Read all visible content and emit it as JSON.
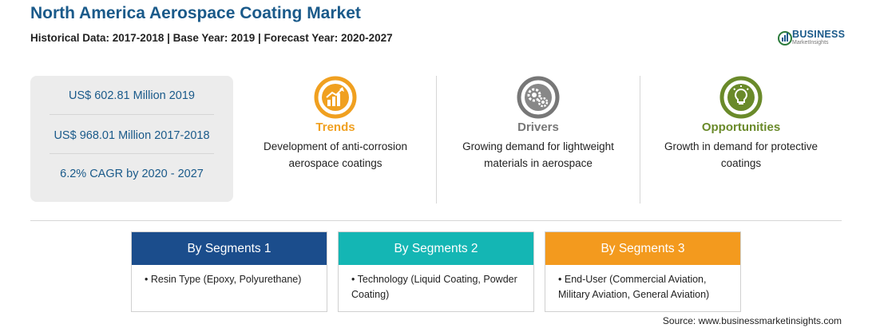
{
  "header": {
    "title": "North America Aerospace Coating Market",
    "subtitle": "Historical Data: 2017-2018 | Base Year: 2019 | Forecast Year: 2020-2027"
  },
  "logo": {
    "name": "BUSINESS",
    "tagline": "MarketInsights"
  },
  "stats": [
    "US$ 602.81 Million 2019",
    "US$ 968.01 Million 2017-2018",
    "6.2% CAGR by 2020 - 2027"
  ],
  "factors": [
    {
      "title": "Trends",
      "text": "Development of anti-corrosion aerospace coatings",
      "color": "#f0a020",
      "icon": "chart-growth-icon"
    },
    {
      "title": "Drivers",
      "text": "Growing demand for lightweight materials in aerospace",
      "color": "#777777",
      "icon": "gears-icon"
    },
    {
      "title": "Opportunities",
      "text": "Growth in demand for protective coatings",
      "color": "#6a8a2a",
      "icon": "lightbulb-icon"
    }
  ],
  "segments": [
    {
      "title": "By Segments 1",
      "item": "Resin Type (Epoxy, Polyurethane)",
      "color": "#1b4d8c"
    },
    {
      "title": "By Segments 2",
      "item": "Technology (Liquid Coating, Powder Coating)",
      "color": "#14b6b4"
    },
    {
      "title": "By Segments 3",
      "item": "End-User (Commercial Aviation, Military Aviation, General Aviation)",
      "color": "#f39a1e"
    }
  ],
  "source": "Source: www.businessmarketinsights.com"
}
